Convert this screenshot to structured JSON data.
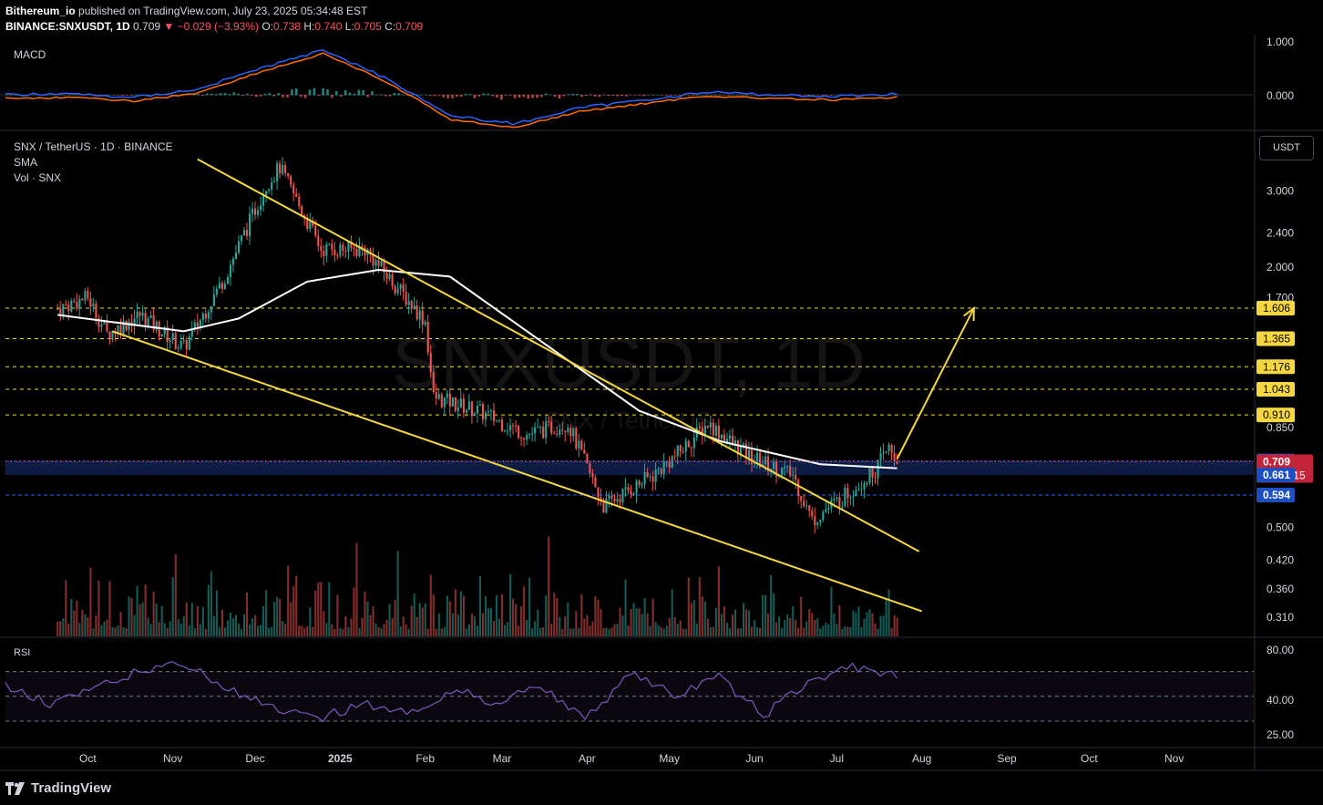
{
  "header": {
    "line1": {
      "author": "Bithereum_io",
      "rest": " published on TradingView.com, July 23, 2025 05:34:48 EST"
    },
    "line2": {
      "symbol": "BINANCE:SNXUSDT, 1D",
      "last": " 0.709",
      "change": "▼ −0.029 (−3.93%)",
      "o_label": " O:",
      "o": "0.738",
      "h_label": " H:",
      "h": "0.740",
      "l_label": " L:",
      "l": "0.705",
      "c_label": " C:",
      "c": "0.709"
    }
  },
  "legend": {
    "macd": "MACD",
    "pair": "SNX / TetherUS · 1D · BINANCE",
    "sma": "SMA",
    "vol": "Vol · SNX",
    "rsi": "RSI"
  },
  "watermark": {
    "big": "SNXUSDT, 1D",
    "small": "SNX / TetherUS"
  },
  "currency_button": "USDT",
  "brand": "TradingView",
  "colors": {
    "up": "#26a69a",
    "down": "#ef5350",
    "trend": "#f5d742",
    "sma": "#ffffff",
    "macd": "#2962ff",
    "signal": "#ff6d00",
    "rsi": "#7e57c2",
    "zone": "#0d1f4a"
  },
  "chart_data": [
    {
      "type": "candlestick",
      "title": "SNX / TetherUS · 1D · BINANCE",
      "x_ticks": [
        "Oct",
        "Nov",
        "Dec",
        "2025",
        "Feb",
        "Mar",
        "Apr",
        "May",
        "Jun",
        "Jul",
        "Aug",
        "Sep",
        "Oct",
        "Nov"
      ],
      "y_ticks": [
        "3.000",
        "2.400",
        "2.000",
        "1.700",
        "1.606",
        "1.365",
        "1.176",
        "1.043",
        "0.910",
        "0.850",
        "0.712",
        "0.709",
        "0.661",
        "0.594",
        "0.500",
        "0.420",
        "0.360",
        "0.310"
      ],
      "y_scale": "log",
      "resistance_levels": [
        1.606,
        1.365,
        1.176,
        1.043,
        0.91
      ],
      "support_zone": [
        0.661,
        0.712
      ],
      "support_line": 0.594,
      "last_price": 0.709,
      "countdown": "13:25:15",
      "price_path": [
        {
          "date": "2024-09-20",
          "price": 1.6
        },
        {
          "date": "2024-10-01",
          "price": 1.7
        },
        {
          "date": "2024-10-08",
          "price": 1.4
        },
        {
          "date": "2024-10-20",
          "price": 1.55
        },
        {
          "date": "2024-11-05",
          "price": 1.3
        },
        {
          "date": "2024-11-20",
          "price": 1.9
        },
        {
          "date": "2024-12-05",
          "price": 3.1
        },
        {
          "date": "2024-12-10",
          "price": 3.4
        },
        {
          "date": "2024-12-25",
          "price": 2.2
        },
        {
          "date": "2025-01-10",
          "price": 2.2
        },
        {
          "date": "2025-02-01",
          "price": 1.5
        },
        {
          "date": "2025-02-04",
          "price": 1.0
        },
        {
          "date": "2025-02-20",
          "price": 0.93
        },
        {
          "date": "2025-03-10",
          "price": 0.82
        },
        {
          "date": "2025-03-25",
          "price": 0.87
        },
        {
          "date": "2025-04-07",
          "price": 0.56
        },
        {
          "date": "2025-04-25",
          "price": 0.66
        },
        {
          "date": "2025-05-05",
          "price": 0.75
        },
        {
          "date": "2025-05-15",
          "price": 0.87
        },
        {
          "date": "2025-05-30",
          "price": 0.73
        },
        {
          "date": "2025-06-15",
          "price": 0.66
        },
        {
          "date": "2025-06-22",
          "price": 0.52
        },
        {
          "date": "2025-07-05",
          "price": 0.6
        },
        {
          "date": "2025-07-15",
          "price": 0.68
        },
        {
          "date": "2025-07-20",
          "price": 0.76
        },
        {
          "date": "2025-07-23",
          "price": 0.709
        }
      ],
      "sma_path": [
        {
          "date": "2024-09-20",
          "price": 1.55
        },
        {
          "date": "2024-11-05",
          "price": 1.42
        },
        {
          "date": "2024-11-25",
          "price": 1.52
        },
        {
          "date": "2024-12-20",
          "price": 1.85
        },
        {
          "date": "2025-01-15",
          "price": 1.97
        },
        {
          "date": "2025-02-10",
          "price": 1.9
        },
        {
          "date": "2025-03-15",
          "price": 1.35
        },
        {
          "date": "2025-04-20",
          "price": 0.93
        },
        {
          "date": "2025-05-20",
          "price": 0.79
        },
        {
          "date": "2025-06-25",
          "price": 0.7
        },
        {
          "date": "2025-07-23",
          "price": 0.685
        }
      ],
      "trendlines": [
        {
          "from": {
            "date": "2024-11-10",
            "price": 3.55
          },
          "to": {
            "date": "2025-07-31",
            "price": 0.44
          }
        },
        {
          "from": {
            "date": "2024-10-10",
            "price": 1.42
          },
          "to": {
            "date": "2025-08-01",
            "price": 0.32
          }
        }
      ],
      "projection_arrow": {
        "from": {
          "date": "2025-07-23",
          "price": 0.72
        },
        "to": {
          "date": "2025-08-20",
          "price": 1.606
        }
      }
    },
    {
      "type": "line",
      "title": "MACD",
      "y_ticks": [
        "1.000",
        "0.000"
      ],
      "series": [
        {
          "name": "",
          "values": [
            0,
            0.02,
            -0.05,
            0.1,
            0.5,
            0.85,
            0.3,
            -0.4,
            -0.55,
            -0.25,
            -0.1,
            0.05,
            0,
            -0.03,
            0.02
          ]
        }
      ]
    },
    {
      "type": "line",
      "title": "RSI",
      "y_ticks": [
        "80.00",
        "40.00",
        "25.00"
      ],
      "series": [
        {
          "name": "",
          "values": [
            60,
            45,
            55,
            70,
            78,
            55,
            40,
            30,
            45,
            35,
            55,
            45,
            60,
            30,
            70,
            50,
            65,
            35,
            60,
            75,
            65
          ]
        }
      ]
    }
  ]
}
